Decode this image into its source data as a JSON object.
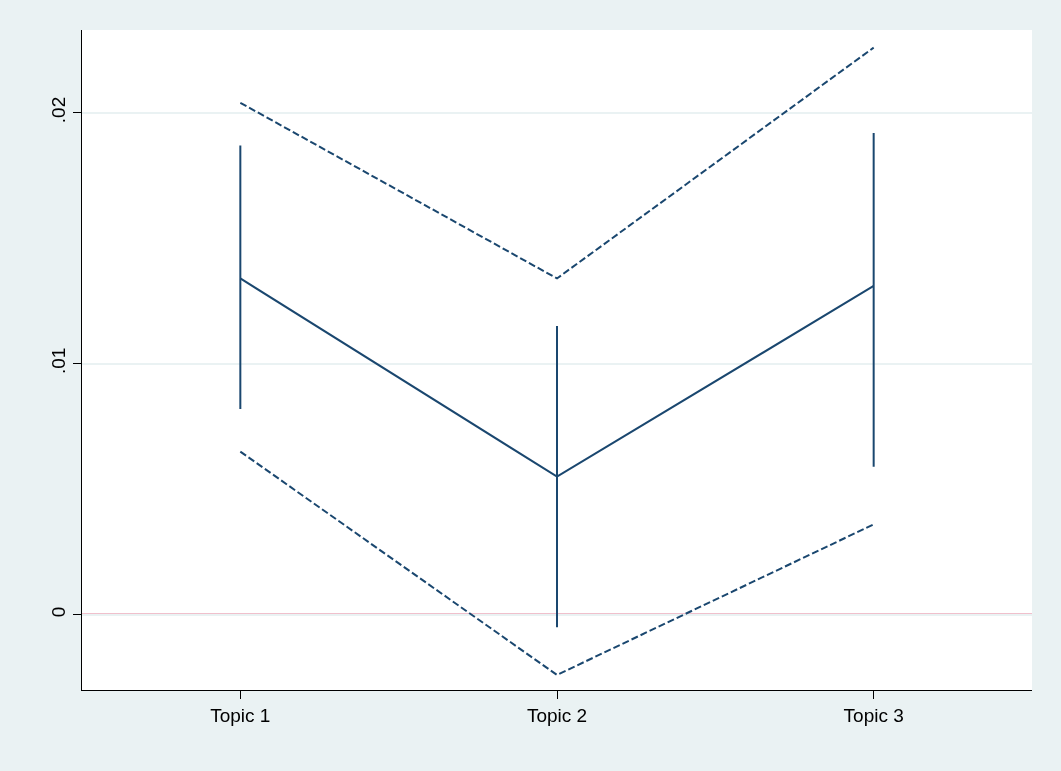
{
  "chart_data": {
    "type": "line",
    "categories": [
      "Topic 1",
      "Topic 2",
      "Topic 3"
    ],
    "series": [
      {
        "color": "#1a476f",
        "line_style": "solid",
        "values": [
          0.0134,
          0.0055,
          0.0131
        ],
        "errors": [
          [
            0.0082,
            0.0187
          ],
          [
            -0.0005,
            0.0115
          ],
          [
            0.0059,
            0.0192
          ]
        ]
      },
      {
        "color": "#1a476f",
        "line_style": "dashed",
        "values": [
          0.0204,
          0.0134,
          0.0226
        ]
      },
      {
        "color": "#1a476f",
        "line_style": "dashed",
        "values": [
          0.0065,
          -0.0024,
          0.0036
        ]
      }
    ],
    "ylim": [
      -0.003,
      0.0233
    ],
    "yticks": [
      {
        "value": 0,
        "label": "0"
      },
      {
        "value": 0.01,
        "label": ".01"
      },
      {
        "value": 0.02,
        "label": ".02"
      }
    ],
    "ref_lines": [
      {
        "axis": "y",
        "value": 0,
        "color": "#c10534"
      }
    ],
    "grid": "y",
    "marker": "none"
  }
}
